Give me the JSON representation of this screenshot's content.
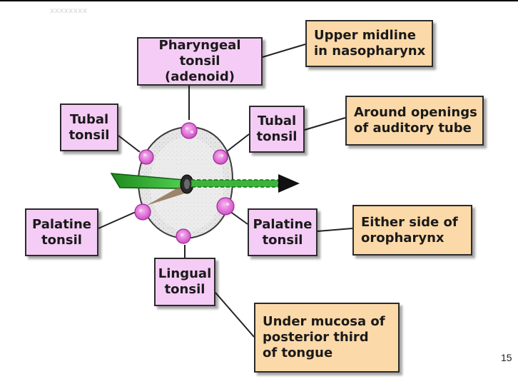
{
  "labels": {
    "pharyngeal": "Pharyngeal\ntonsil (adenoid)",
    "tubal_left": "Tubal\ntonsil",
    "tubal_right": "Tubal\ntonsil",
    "palatine_left": "Palatine\ntonsil",
    "palatine_right": "Palatine\ntonsil",
    "lingual": "Lingual\ntonsil"
  },
  "descriptions": {
    "upper": "Upper midline\nin nasopharynx",
    "around": "Around openings\nof auditory tube",
    "either": "Either side of\noropharynx",
    "under": "Under mucosa of\nposterior third\nof tongue"
  },
  "header_faint": "xxxxxxxx",
  "page_number": "15",
  "colors": {
    "label_box": "#f5ccf5",
    "description_box": "#fcd9a8",
    "tonsil_fill": "#e878e0",
    "ring_fill": "#e4e4e4",
    "arrow_fill": "#3cb43c"
  },
  "icons": {
    "tonsil": "pink-flower-blob",
    "arrow": "green-arrow"
  }
}
